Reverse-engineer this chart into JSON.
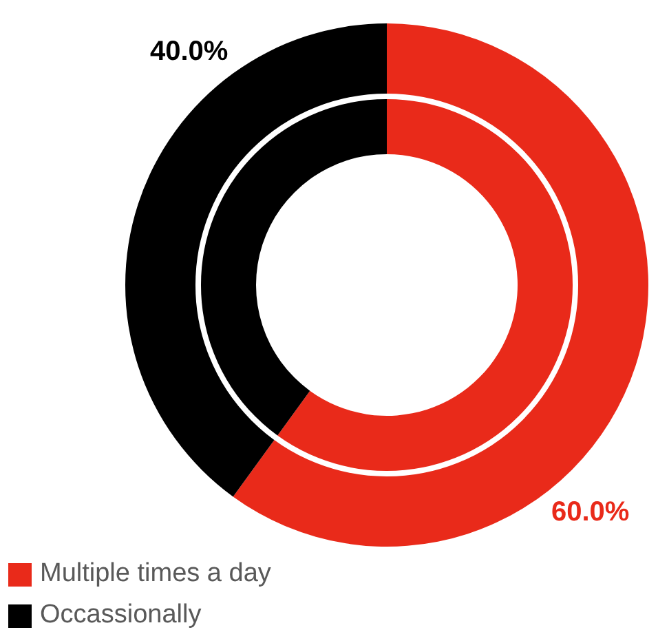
{
  "chart_data": {
    "type": "donut",
    "categories": [
      "Multiple times a day",
      "Occassionally"
    ],
    "values": [
      60,
      40
    ],
    "colors": [
      "#e92a1a",
      "#000000"
    ],
    "value_labels": [
      "60.0%",
      "40.0%"
    ],
    "legend": "bottom left"
  }
}
